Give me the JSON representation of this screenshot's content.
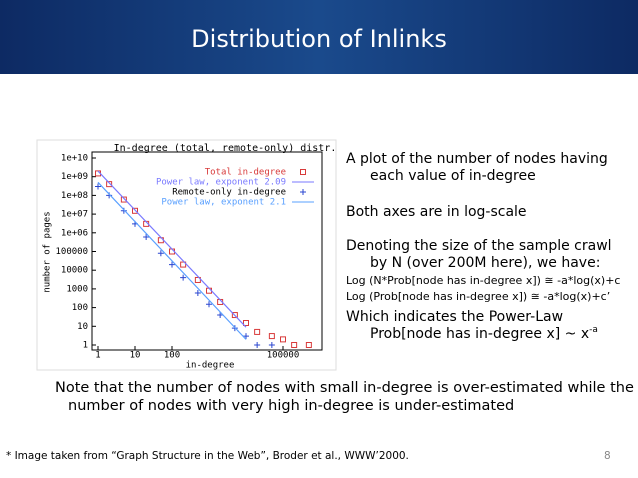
{
  "title": "Distribution of Inlinks",
  "chart_data": {
    "type": "scatter",
    "title": "In-degree (total, remote-only) distr.",
    "x_label": "in-degree",
    "y_label": "number of pages",
    "log_x": true,
    "log_y": true,
    "xlim": [
      1,
      1000000
    ],
    "ylim": [
      1,
      10000000000
    ],
    "xticks": [
      1,
      10,
      100,
      100000
    ],
    "yticks": [
      {
        "value": 10000000000,
        "label": "1e+10"
      },
      {
        "value": 1000000000,
        "label": "1e+09"
      },
      {
        "value": 100000000,
        "label": "1e+08"
      },
      {
        "value": 10000000,
        "label": "1e+07"
      },
      {
        "value": 1000000,
        "label": "1e+06"
      },
      100000,
      10000,
      1000,
      100,
      10,
      1
    ],
    "series": [
      {
        "name": "Total in-degree",
        "color": "#d83a3a",
        "marker": "square",
        "x": [
          1,
          2,
          5,
          10,
          20,
          50,
          100,
          200,
          500,
          1000,
          2000,
          5000,
          10000,
          20000,
          50000,
          100000,
          200000,
          500000
        ],
        "values": [
          1500000000,
          400000000,
          60000000,
          15000000,
          3000000,
          400000,
          100000,
          20000,
          3000,
          800,
          200,
          40,
          15,
          5,
          3,
          2,
          1,
          1
        ]
      },
      {
        "name": "Power law, exponent 2.09",
        "color": "#7a7aff",
        "marker": "line",
        "x": [
          1,
          10000
        ],
        "values": [
          2000000000,
          9
        ]
      },
      {
        "name": "Remote-only in-degree",
        "color": "#2a46d0",
        "marker": "plus",
        "x": [
          1,
          2,
          5,
          10,
          20,
          50,
          100,
          200,
          500,
          1000,
          2000,
          5000,
          10000,
          20000,
          50000
        ],
        "values": [
          300000000,
          100000000,
          15000000,
          3000000,
          600000,
          80000,
          20000,
          4000,
          600,
          150,
          40,
          8,
          3,
          1,
          1
        ]
      },
      {
        "name": "Power law, exponent 2.1",
        "color": "#5aa0ff",
        "marker": "line",
        "x": [
          1,
          10000
        ],
        "values": [
          500000000,
          2
        ]
      }
    ]
  },
  "bullets": [
    {
      "lines": [
        "A plot of the number of nodes having",
        "each value of in-degree"
      ]
    },
    {
      "lines": [
        "Both axes are in log-scale"
      ]
    },
    {
      "lines": [
        "Denoting the size of the sample crawl",
        "by N (over 200M here), we have:"
      ],
      "formulas": [
        "Log (N*Prob[node has in-degree x]) ≅ -a*log(x)+c",
        "Log (Prob[node has in-degree x]) ≅ -a*log(x)+c’"
      ]
    },
    {
      "lines": [
        "Which indicates the Power-Law",
        "Prob[node has in-degree x] ~ x"
      ],
      "superscript": "-a"
    }
  ],
  "note": [
    "Note that the number of nodes with small in-degree is over-estimated while the",
    "number of nodes with very high in-degree is under-estimated"
  ],
  "footer": "* Image taken from “Graph Structure in the Web”, Broder et al., WWW’2000.",
  "page_number": 8
}
